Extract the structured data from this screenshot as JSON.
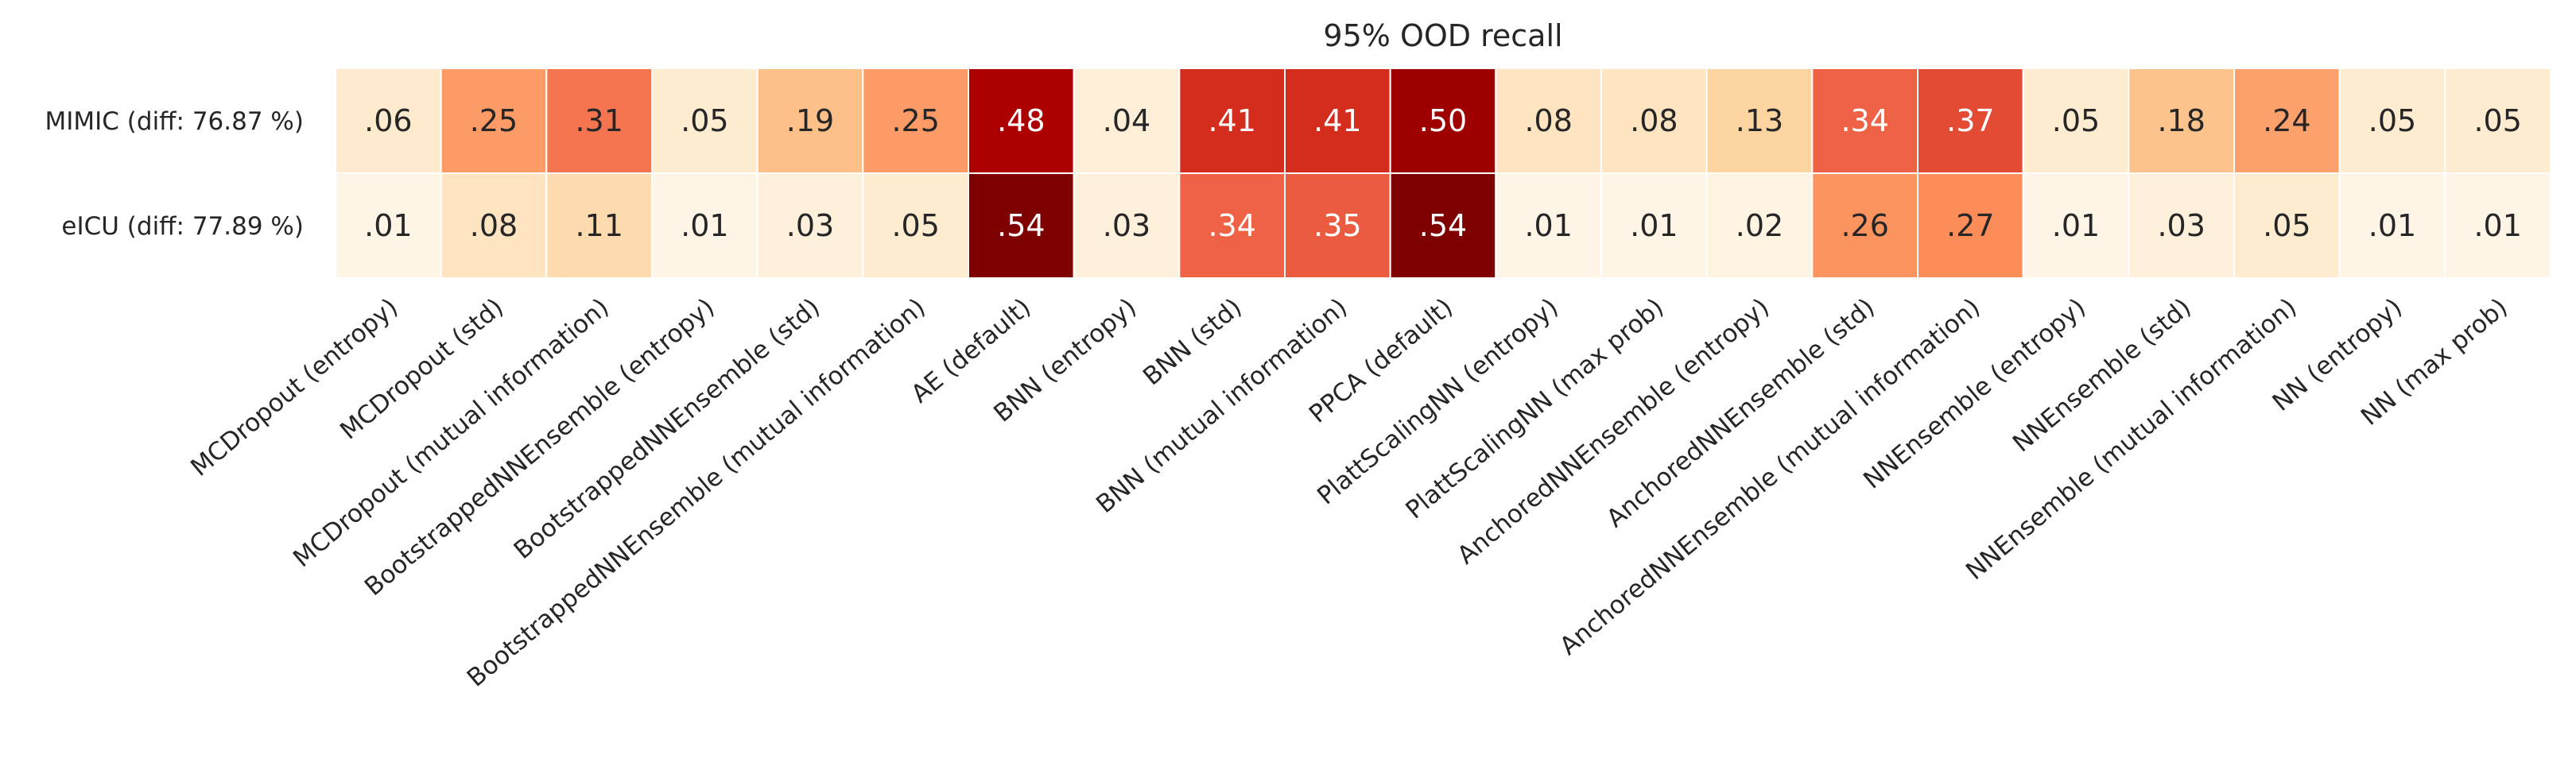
{
  "chart_data": {
    "type": "heatmap",
    "title": "95% OOD recall",
    "rows": [
      "MIMIC (diff: 76.87 %)",
      "eICU (diff: 77.89 %)"
    ],
    "columns": [
      "MCDropout (entropy)",
      "MCDropout (std)",
      "MCDropout (mutual information)",
      "BootstrappedNNEnsemble (entropy)",
      "BootstrappedNNEnsemble (std)",
      "BootstrappedNNEnsemble (mutual information)",
      "AE (default)",
      "BNN (entropy)",
      "BNN (std)",
      "BNN (mutual information)",
      "PPCA (default)",
      "PlattScalingNN (entropy)",
      "PlattScalingNN (max prob)",
      "AnchoredNNEnsemble (entropy)",
      "AnchoredNNEnsemble (std)",
      "AnchoredNNEnsemble (mutual information)",
      "NNEnsemble (entropy)",
      "NNEnsemble (std)",
      "NNEnsemble (mutual information)",
      "NN (entropy)",
      "NN (max prob)"
    ],
    "values": [
      [
        0.06,
        0.25,
        0.31,
        0.05,
        0.19,
        0.25,
        0.48,
        0.04,
        0.41,
        0.41,
        0.5,
        0.08,
        0.08,
        0.13,
        0.34,
        0.37,
        0.05,
        0.18,
        0.24,
        0.05,
        0.05
      ],
      [
        0.01,
        0.08,
        0.11,
        0.01,
        0.03,
        0.05,
        0.54,
        0.03,
        0.34,
        0.35,
        0.54,
        0.01,
        0.01,
        0.02,
        0.26,
        0.27,
        0.01,
        0.03,
        0.05,
        0.01,
        0.01
      ]
    ],
    "cell_labels": [
      [
        ".06",
        ".25",
        ".31",
        ".05",
        ".19",
        ".25",
        ".48",
        ".04",
        ".41",
        ".41",
        ".50",
        ".08",
        ".08",
        ".13",
        ".34",
        ".37",
        ".05",
        ".18",
        ".24",
        ".05",
        ".05"
      ],
      [
        ".01",
        ".08",
        ".11",
        ".01",
        ".03",
        ".05",
        ".54",
        ".03",
        ".34",
        ".35",
        ".54",
        ".01",
        ".01",
        ".02",
        ".26",
        ".27",
        ".01",
        ".03",
        ".05",
        ".01",
        ".01"
      ]
    ],
    "colormap": "OrRd",
    "color_range": [
      0,
      0.54
    ],
    "grid": false,
    "legend": "none"
  }
}
